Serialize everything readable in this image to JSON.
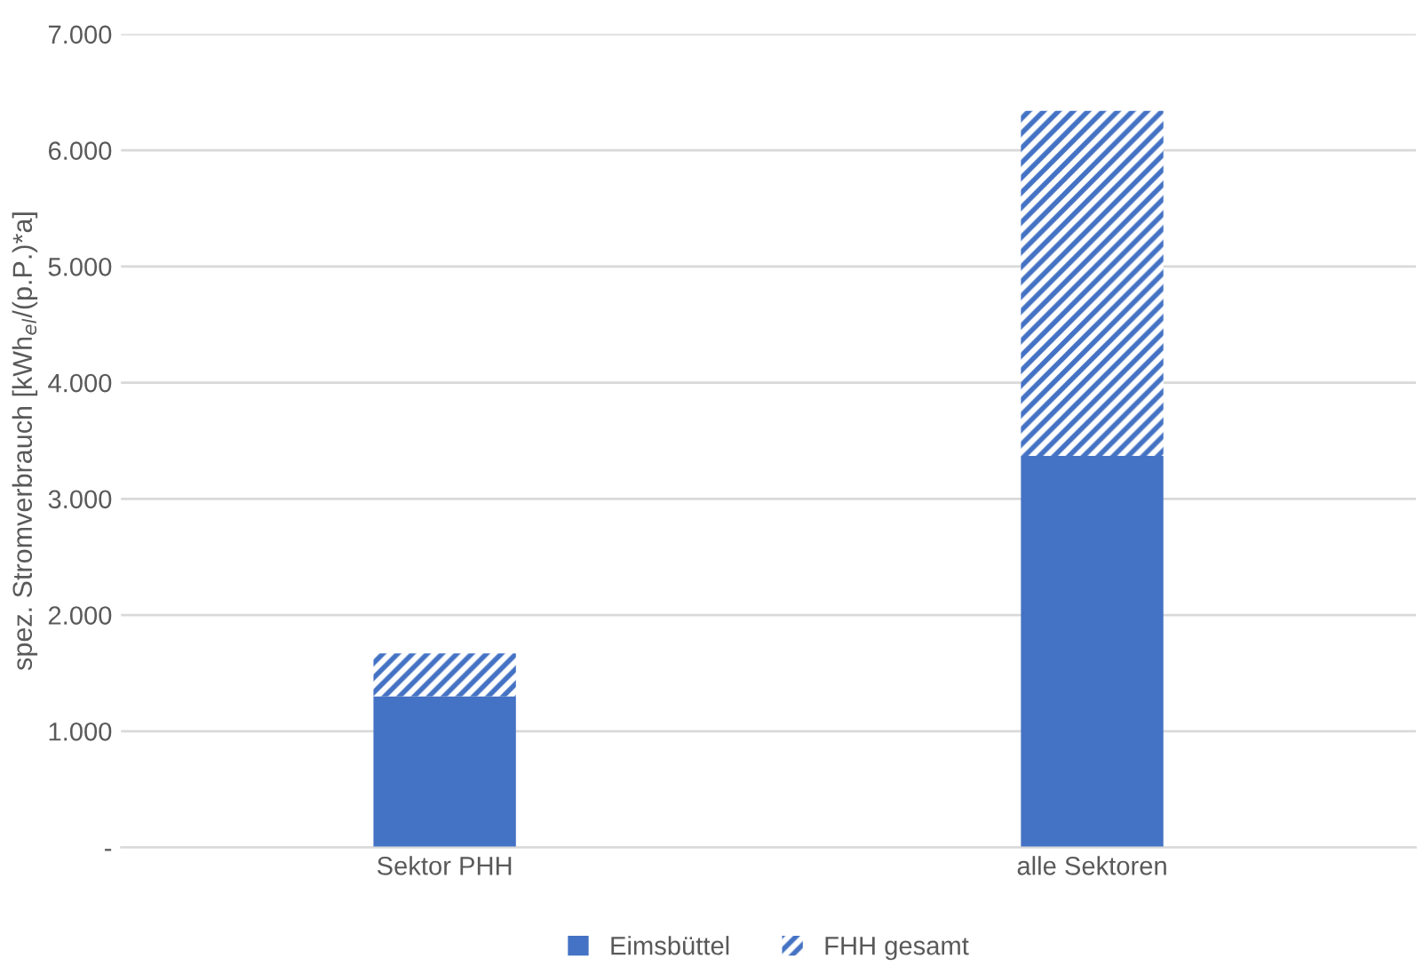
{
  "chart_data": {
    "type": "bar",
    "stacked": true,
    "ylabel": "spez. Stromverbrauch [kWh$_{el}$/(p.P.)*a]",
    "categories": [
      "Sektor PHH",
      "alle Sektoren"
    ],
    "series": [
      {
        "name": "Eimsbüttel",
        "color": "#4472c4",
        "values": [
          1300,
          3370
        ]
      },
      {
        "name": "FHH gesamt",
        "color": "#4472c4",
        "values": [
          370,
          2970
        ]
      }
    ],
    "ylim": [
      0,
      7000
    ],
    "yticks": [
      {
        "value": 0,
        "label": "-"
      },
      {
        "value": 1000,
        "label": "1.000"
      },
      {
        "value": 2000,
        "label": "2.000"
      },
      {
        "value": 3000,
        "label": "3.000"
      },
      {
        "value": 4000,
        "label": "4.000"
      },
      {
        "value": 5000,
        "label": "5.000"
      },
      {
        "value": 6000,
        "label": "6.000"
      },
      {
        "value": 7000,
        "label": "7.000"
      }
    ],
    "grid": "y",
    "legend": "bottom"
  }
}
